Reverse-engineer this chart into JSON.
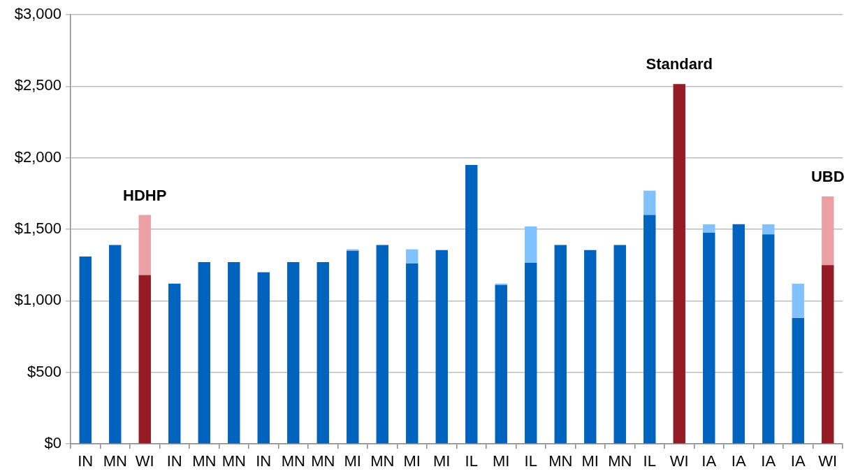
{
  "chart_data": {
    "type": "bar",
    "stacked": true,
    "categories": [
      "IN",
      "MN",
      "WI",
      "IN",
      "MN",
      "MN",
      "IN",
      "MN",
      "MN",
      "MI",
      "MN",
      "MI",
      "MI",
      "IL",
      "MI",
      "IL",
      "MN",
      "MI",
      "MN",
      "IL",
      "WI",
      "IA",
      "IA",
      "IA",
      "IA",
      "WI"
    ],
    "series": [
      {
        "colors": [
          "#0063be",
          "#0063be",
          "#951b24",
          "#0063be",
          "#0063be",
          "#0063be",
          "#0063be",
          "#0063be",
          "#0063be",
          "#0063be",
          "#0063be",
          "#0063be",
          "#0063be",
          "#0063be",
          "#0063be",
          "#0063be",
          "#0063be",
          "#0063be",
          "#0063be",
          "#0063be",
          "#951b24",
          "#0063be",
          "#0063be",
          "#0063be",
          "#0063be",
          "#951b24"
        ],
        "values": [
          1310,
          1390,
          1180,
          1120,
          1270,
          1270,
          1200,
          1270,
          1270,
          1350,
          1390,
          1260,
          1355,
          1950,
          1110,
          1265,
          1390,
          1355,
          1390,
          1600,
          2515,
          1475,
          1535,
          1465,
          880,
          1250
        ]
      },
      {
        "colors": [
          "#80c2ff",
          "#80c2ff",
          "#eba1a4",
          "#80c2ff",
          "#80c2ff",
          "#80c2ff",
          "#80c2ff",
          "#80c2ff",
          "#80c2ff",
          "#80c2ff",
          "#80c2ff",
          "#80c2ff",
          "#80c2ff",
          "#80c2ff",
          "#80c2ff",
          "#80c2ff",
          "#80c2ff",
          "#80c2ff",
          "#80c2ff",
          "#80c2ff",
          "#eba1a4",
          "#80c2ff",
          "#80c2ff",
          "#80c2ff",
          "#80c2ff",
          "#eba1a4"
        ],
        "values": [
          null,
          null,
          420,
          null,
          null,
          null,
          null,
          null,
          null,
          10,
          null,
          100,
          null,
          null,
          10,
          255,
          null,
          null,
          null,
          170,
          null,
          60,
          null,
          70,
          240,
          480
        ]
      }
    ],
    "ylim": [
      0,
      3000
    ],
    "yticks": [
      {
        "value": 0,
        "label": "$0"
      },
      {
        "value": 500,
        "label": "$500"
      },
      {
        "value": 1000,
        "label": "$1,000"
      },
      {
        "value": 1500,
        "label": "$1,500"
      },
      {
        "value": 2000,
        "label": "$2,000"
      },
      {
        "value": 2500,
        "label": "$2,500"
      },
      {
        "value": 3000,
        "label": "$3,000"
      }
    ],
    "grid": "y",
    "annotations": [
      "HDHP",
      "Standard",
      "UBD"
    ]
  }
}
